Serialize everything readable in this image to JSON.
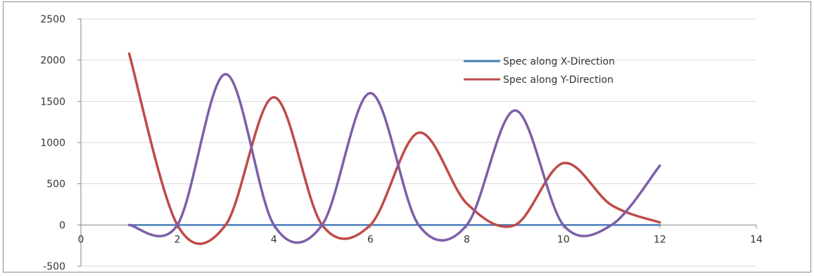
{
  "chart_data": {
    "type": "line",
    "title": "",
    "xlabel": "",
    "ylabel": "",
    "xlim": [
      0,
      14
    ],
    "ylim": [
      -500,
      2500
    ],
    "x_ticks": [
      0,
      2,
      4,
      6,
      8,
      10,
      12,
      14
    ],
    "y_ticks": [
      -500,
      0,
      500,
      1000,
      1500,
      2000,
      2500
    ],
    "x_tick_labels": [
      "0",
      "2",
      "4",
      "6",
      "8",
      "10",
      "12",
      "14"
    ],
    "y_tick_labels": [
      "-500",
      "0",
      "500",
      "1000",
      "1500",
      "2000",
      "2500"
    ],
    "grid": "horizontal",
    "legend_position": "top-right",
    "smooth": true,
    "series": [
      {
        "name": "Spec along X-Direction",
        "color": "#4a7ebb",
        "x": [
          1,
          2,
          3,
          4,
          5,
          6,
          7,
          8,
          9,
          10,
          11,
          12
        ],
        "y": [
          0,
          0,
          0,
          0,
          0,
          0,
          0,
          0,
          0,
          0,
          0,
          0
        ]
      },
      {
        "name": "Spec along Y-Direction",
        "color": "#be4b48",
        "x": [
          1,
          2,
          3,
          4,
          5,
          6,
          7,
          8,
          9,
          10,
          11,
          12
        ],
        "y": [
          2080,
          0,
          0,
          1550,
          0,
          0,
          1120,
          260,
          0,
          750,
          240,
          30
        ]
      },
      {
        "name": "",
        "color": "#7d5fa8",
        "x": [
          1,
          2,
          3,
          4,
          5,
          6,
          7,
          8,
          9,
          10,
          11,
          12
        ],
        "y": [
          0,
          0,
          1830,
          0,
          0,
          1600,
          0,
          0,
          1390,
          0,
          0,
          720
        ]
      }
    ]
  }
}
